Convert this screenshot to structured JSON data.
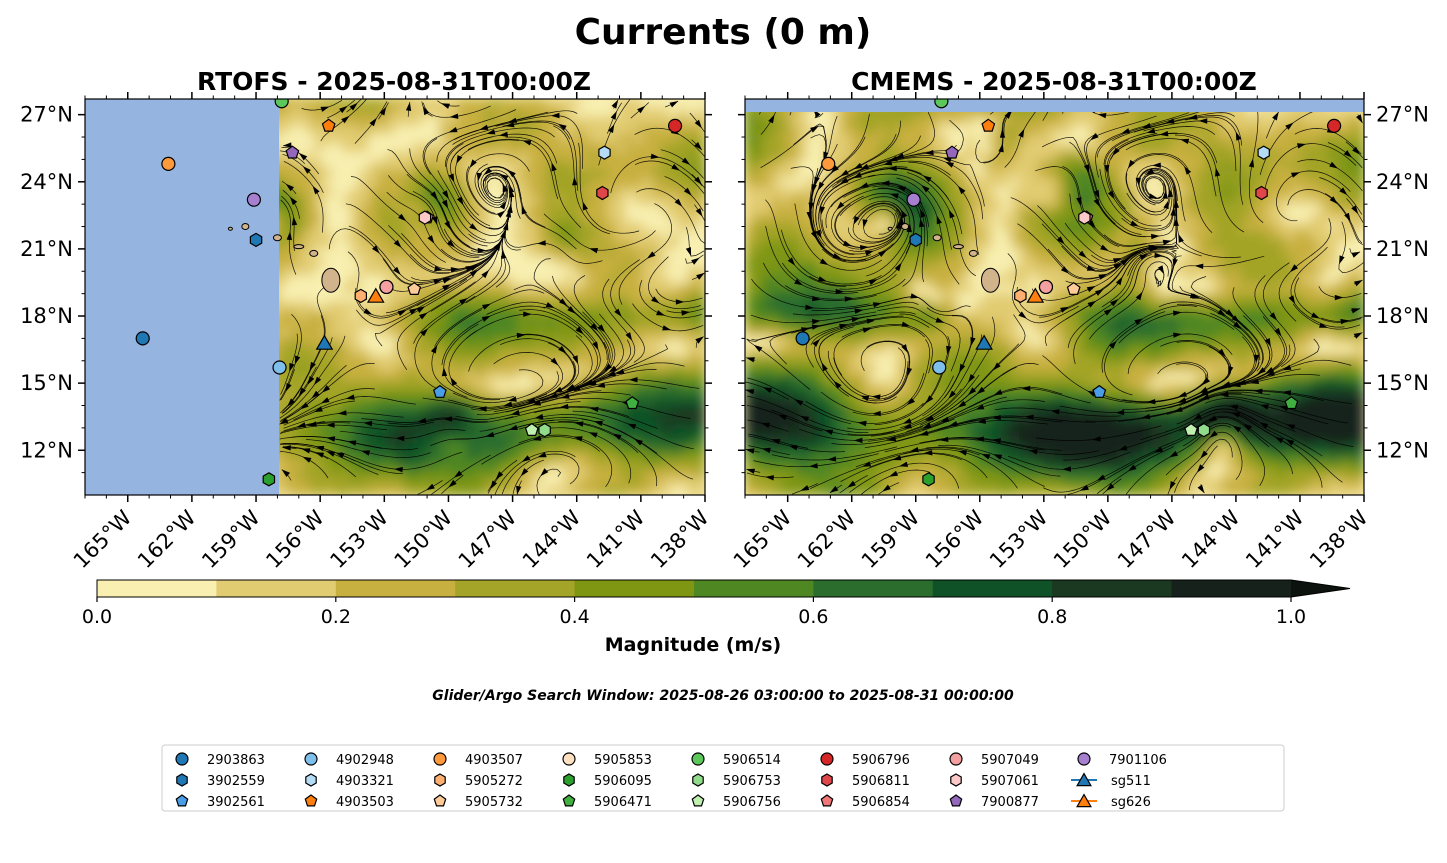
{
  "title": "Currents (0 m)",
  "chart_data": [
    {
      "type": "heatmap",
      "title": "RTOFS - 2025-08-31T00:00Z",
      "xlim": [
        -167,
        -138
      ],
      "ylim": [
        10,
        27.7
      ],
      "x_ticks": [
        "165°W",
        "162°W",
        "159°W",
        "156°W",
        "153°W",
        "150°W",
        "147°W",
        "144°W",
        "141°W",
        "138°W"
      ],
      "y_ticks": [
        "27°N",
        "24°N",
        "21°N",
        "18°N",
        "15°N",
        "12°N"
      ],
      "missing_data_west_of_lon": -157.9
    },
    {
      "type": "heatmap",
      "title": "CMEMS - 2025-08-31T00:00Z",
      "xlim": [
        -167,
        -138
      ],
      "ylim": [
        10,
        27.7
      ],
      "x_ticks": [
        "165°W",
        "162°W",
        "159°W",
        "156°W",
        "153°W",
        "150°W",
        "147°W",
        "144°W",
        "141°W",
        "138°W"
      ],
      "y_ticks": [
        "27°N",
        "24°N",
        "21°N",
        "18°N",
        "15°N",
        "12°N"
      ],
      "missing_data_north_of_lat": 27.1
    }
  ],
  "colorbar": {
    "label": "Magnitude (m/s)",
    "min": 0,
    "max": 1,
    "step": 0.1,
    "tick_labels": [
      "0.0",
      "0.2",
      "0.4",
      "0.6",
      "0.8",
      "1.0"
    ],
    "colors": [
      "#f8efb0",
      "#e2cc72",
      "#c8b040",
      "#a3a428",
      "#7f9612",
      "#4f8722",
      "#2a6d2d",
      "#105228",
      "#1b3820",
      "#15211a"
    ]
  },
  "subtitle": "Glider/Argo Search Window: 2025-08-26 03:00:00 to 2025-08-31 00:00:00",
  "legend": [
    {
      "id": "2903863",
      "marker": "circle",
      "color": "#1f77b4"
    },
    {
      "id": "3902559",
      "marker": "hexagon",
      "color": "#1f77b4"
    },
    {
      "id": "3902561",
      "marker": "pentagon",
      "color": "#4a9ee8"
    },
    {
      "id": "4902948",
      "marker": "circle",
      "color": "#7fbfec"
    },
    {
      "id": "4903321",
      "marker": "hexagon",
      "color": "#b5dcf5"
    },
    {
      "id": "4903503",
      "marker": "pentagon",
      "color": "#ff7f0e"
    },
    {
      "id": "4903507",
      "marker": "circle",
      "color": "#ff9a3c"
    },
    {
      "id": "5905272",
      "marker": "hexagon",
      "color": "#ffb070"
    },
    {
      "id": "5905732",
      "marker": "pentagon",
      "color": "#ffcc99"
    },
    {
      "id": "5905853",
      "marker": "circle",
      "color": "#ffe0c0"
    },
    {
      "id": "5906095",
      "marker": "hexagon",
      "color": "#2ca02c"
    },
    {
      "id": "5906471",
      "marker": "pentagon",
      "color": "#40b040"
    },
    {
      "id": "5906514",
      "marker": "circle",
      "color": "#5cc85c"
    },
    {
      "id": "5906753",
      "marker": "hexagon",
      "color": "#90dc8a"
    },
    {
      "id": "5906756",
      "marker": "pentagon",
      "color": "#c0f0b0"
    },
    {
      "id": "5906796",
      "marker": "circle",
      "color": "#d62728"
    },
    {
      "id": "5906811",
      "marker": "hexagon",
      "color": "#e0474a"
    },
    {
      "id": "5906854",
      "marker": "pentagon",
      "color": "#f07878"
    },
    {
      "id": "5907049",
      "marker": "circle",
      "color": "#f4a0a0"
    },
    {
      "id": "5907061",
      "marker": "hexagon",
      "color": "#fcc8c8"
    },
    {
      "id": "7900877",
      "marker": "pentagon",
      "color": "#9467bd"
    },
    {
      "id": "7901106",
      "marker": "circle",
      "color": "#a67fd0"
    },
    {
      "id": "sg511",
      "marker": "triangle-line",
      "color": "#1f77b4"
    },
    {
      "id": "sg626",
      "marker": "triangle-line",
      "color": "#ff7f0e"
    }
  ],
  "floats": [
    {
      "id": "2903863",
      "lon": -164.3,
      "lat": 17.0
    },
    {
      "id": "3902559",
      "lon": -159.0,
      "lat": 21.4
    },
    {
      "id": "3902561",
      "lon": -150.4,
      "lat": 14.6
    },
    {
      "id": "4902948",
      "lon": -157.9,
      "lat": 15.7
    },
    {
      "id": "4903321",
      "lon": -142.7,
      "lat": 25.3
    },
    {
      "id": "4903503",
      "lon": -155.6,
      "lat": 26.5
    },
    {
      "id": "4903507",
      "lon": -163.1,
      "lat": 24.8
    },
    {
      "id": "5905272",
      "lon": -154.1,
      "lat": 18.9
    },
    {
      "id": "5905732",
      "lon": -151.6,
      "lat": 19.2
    },
    {
      "id": "5905853",
      "lon": -152.9,
      "lat": 19.3
    },
    {
      "id": "5906095",
      "lon": -158.4,
      "lat": 10.7
    },
    {
      "id": "5906471",
      "lon": -141.4,
      "lat": 14.1
    },
    {
      "id": "5906514",
      "lon": -157.8,
      "lat": 27.6
    },
    {
      "id": "5906753",
      "lon": -145.5,
      "lat": 12.9
    },
    {
      "id": "5906756",
      "lon": -146.1,
      "lat": 12.9
    },
    {
      "id": "5906796",
      "lon": -139.4,
      "lat": 26.5
    },
    {
      "id": "5906811",
      "lon": -142.8,
      "lat": 23.5
    },
    {
      "id": "5906854",
      "lon": -151.0,
      "lat": 22.4
    },
    {
      "id": "5907049",
      "lon": -152.9,
      "lat": 19.3
    },
    {
      "id": "5907061",
      "lon": -151.1,
      "lat": 22.4
    },
    {
      "id": "7900877",
      "lon": -157.3,
      "lat": 25.3
    },
    {
      "id": "7901106",
      "lon": -159.1,
      "lat": 23.2
    }
  ],
  "gliders": [
    {
      "id": "sg511",
      "lon": -155.8,
      "lat": 16.8
    },
    {
      "id": "sg626",
      "lon": -153.4,
      "lat": 18.9
    }
  ]
}
